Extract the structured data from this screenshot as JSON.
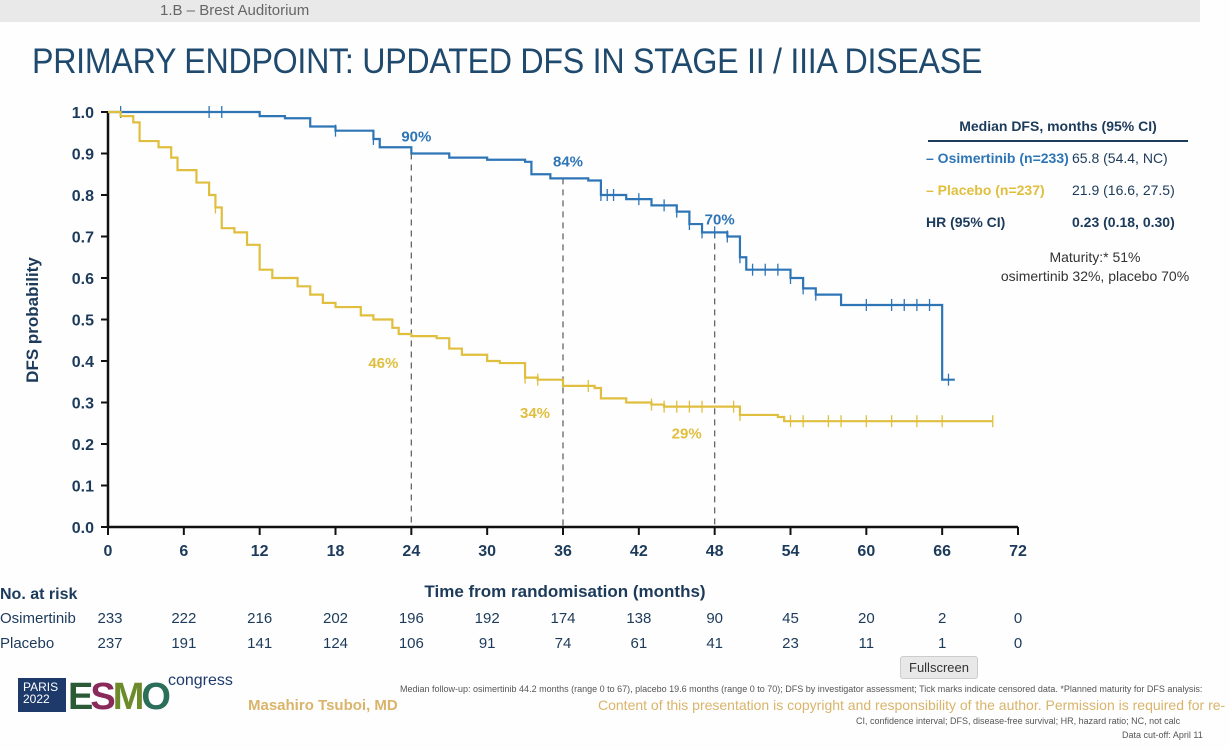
{
  "window": {
    "room_label": "1.B – Brest Auditorium",
    "tooltip": "Fullscreen"
  },
  "slide": {
    "title": "PRIMARY ENDPOINT: UPDATED DFS IN STAGE II / IIIA DISEASE",
    "legend": {
      "header": "Median DFS, months (95% CI)",
      "rows": [
        {
          "label": "– Osimertinib (n=233)",
          "value": "65.8 (54.4, NC)",
          "color": "#2e75b6"
        },
        {
          "label": "– Placebo (n=237)",
          "value": "21.9 (16.6, 27.5)",
          "color": "#e0bf3e"
        },
        {
          "label": "HR (95% CI)",
          "value": "0.23 (0.18, 0.30)",
          "color": "#1c3a5a"
        }
      ],
      "maturity_line1": "Maturity:* 51%",
      "maturity_line2": "osimertinib 32%, placebo 70%"
    },
    "risk_table": {
      "header": "No. at risk",
      "rows": [
        {
          "label": "Osimertinib",
          "values": [
            "233",
            "222",
            "216",
            "202",
            "196",
            "192",
            "174",
            "138",
            "90",
            "45",
            "20",
            "2",
            "0"
          ]
        },
        {
          "label": "Placebo",
          "values": [
            "237",
            "191",
            "141",
            "124",
            "106",
            "91",
            "74",
            "61",
            "41",
            "23",
            "11",
            "1",
            "0"
          ]
        }
      ]
    },
    "logo": {
      "city": "PARIS",
      "year": "2022",
      "brand": "ESMO",
      "suffix": "congress"
    },
    "author": "Masahiro Tsuboi, MD",
    "footnote1": "Median follow-up: osimertinib 44.2 months (range 0 to 67), placebo 19.6 months (range 0 to 70); DFS by investigator assessment; Tick marks indicate censored data. *Planned maturity for DFS analysis:",
    "copyright": "Content of this presentation is copyright and responsibility of the author. Permission is required for re-",
    "footnote2": "CI, confidence interval; DFS, disease-free survival; HR, hazard ratio; NC, not calc",
    "footnote3": "Data cut-off: April 11"
  },
  "chart_data": {
    "type": "line",
    "subtype": "kaplan-meier step",
    "xlabel": "Time from randomisation (months)",
    "ylabel": "DFS probability",
    "xlim": [
      0,
      72
    ],
    "ylim": [
      0,
      1.0
    ],
    "xticks": [
      "0",
      "6",
      "12",
      "18",
      "24",
      "30",
      "36",
      "42",
      "48",
      "54",
      "60",
      "66",
      "72"
    ],
    "yticks": [
      "0.0",
      "0.1",
      "0.2",
      "0.3",
      "0.4",
      "0.5",
      "0.6",
      "0.7",
      "0.8",
      "0.9",
      "1.0"
    ],
    "grid": false,
    "reference_lines_months": [
      24,
      36,
      48
    ],
    "series": [
      {
        "name": "Osimertinib",
        "color": "#2e75b6",
        "points": [
          [
            0,
            1.0
          ],
          [
            9,
            1.0
          ],
          [
            12,
            0.99
          ],
          [
            14,
            0.985
          ],
          [
            16,
            0.965
          ],
          [
            18,
            0.955
          ],
          [
            21,
            0.935
          ],
          [
            21.5,
            0.915
          ],
          [
            24,
            0.9
          ],
          [
            27,
            0.89
          ],
          [
            30,
            0.885
          ],
          [
            33,
            0.88
          ],
          [
            33.5,
            0.85
          ],
          [
            35,
            0.84
          ],
          [
            38,
            0.835
          ],
          [
            39,
            0.8
          ],
          [
            41,
            0.79
          ],
          [
            43,
            0.775
          ],
          [
            45,
            0.76
          ],
          [
            46,
            0.73
          ],
          [
            47,
            0.71
          ],
          [
            49,
            0.7
          ],
          [
            50,
            0.65
          ],
          [
            50.5,
            0.62
          ],
          [
            53,
            0.62
          ],
          [
            54,
            0.6
          ],
          [
            55,
            0.575
          ],
          [
            56,
            0.56
          ],
          [
            58,
            0.535
          ],
          [
            66,
            0.535
          ],
          [
            66,
            0.355
          ],
          [
            67,
            0.355
          ]
        ],
        "censored": [
          1,
          8,
          9,
          18,
          21,
          39,
          39.5,
          40,
          42,
          44,
          45,
          46,
          47,
          48,
          49,
          50,
          51,
          52,
          53,
          54,
          55,
          56,
          60,
          62,
          63,
          64,
          65,
          66.5
        ]
      },
      {
        "name": "Placebo",
        "color": "#e0bf3e",
        "points": [
          [
            0,
            1.0
          ],
          [
            1,
            0.99
          ],
          [
            2,
            0.975
          ],
          [
            2.5,
            0.93
          ],
          [
            4,
            0.915
          ],
          [
            5,
            0.89
          ],
          [
            5.5,
            0.86
          ],
          [
            7,
            0.83
          ],
          [
            8,
            0.8
          ],
          [
            8.5,
            0.77
          ],
          [
            9,
            0.72
          ],
          [
            10,
            0.71
          ],
          [
            11,
            0.68
          ],
          [
            12,
            0.62
          ],
          [
            13,
            0.6
          ],
          [
            15,
            0.58
          ],
          [
            16,
            0.56
          ],
          [
            17,
            0.54
          ],
          [
            18,
            0.53
          ],
          [
            20,
            0.51
          ],
          [
            21,
            0.5
          ],
          [
            22.5,
            0.48
          ],
          [
            23,
            0.465
          ],
          [
            24,
            0.46
          ],
          [
            26,
            0.455
          ],
          [
            27,
            0.43
          ],
          [
            28,
            0.415
          ],
          [
            30,
            0.4
          ],
          [
            31,
            0.395
          ],
          [
            33,
            0.36
          ],
          [
            34,
            0.355
          ],
          [
            36,
            0.34
          ],
          [
            38.5,
            0.335
          ],
          [
            39,
            0.31
          ],
          [
            41,
            0.3
          ],
          [
            43,
            0.295
          ],
          [
            44,
            0.29
          ],
          [
            49.5,
            0.29
          ],
          [
            50,
            0.27
          ],
          [
            53,
            0.265
          ],
          [
            53.5,
            0.255
          ],
          [
            70,
            0.255
          ]
        ],
        "censored": [
          8.5,
          33,
          34,
          38,
          43,
          44,
          45,
          46,
          47,
          49.5,
          50,
          54,
          55,
          57,
          58,
          60,
          62,
          64,
          66,
          70
        ]
      }
    ],
    "annotations": [
      {
        "text": "90%",
        "x": 24,
        "y": 0.9,
        "series": "Osimertinib"
      },
      {
        "text": "84%",
        "x": 36,
        "y": 0.84,
        "series": "Osimertinib"
      },
      {
        "text": "70%",
        "x": 48,
        "y": 0.7,
        "series": "Osimertinib"
      },
      {
        "text": "46%",
        "x": 24,
        "y": 0.46,
        "series": "Placebo"
      },
      {
        "text": "34%",
        "x": 36,
        "y": 0.34,
        "series": "Placebo"
      },
      {
        "text": "29%",
        "x": 48,
        "y": 0.29,
        "series": "Placebo"
      }
    ]
  }
}
